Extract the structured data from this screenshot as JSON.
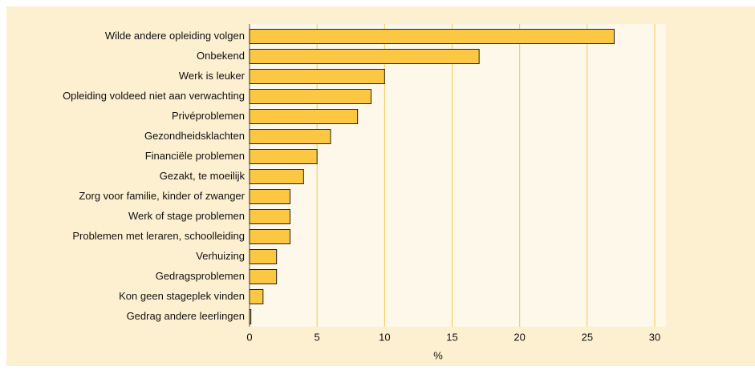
{
  "chart_data": {
    "type": "bar",
    "orientation": "horizontal",
    "categories": [
      "Wilde andere opleiding volgen",
      "Onbekend",
      "Werk is leuker",
      "Opleiding voldeed niet aan verwachting",
      "Privéproblemen",
      "Gezondheidsklachten",
      "Financiële problemen",
      "Gezakt, te moeilijk",
      "Zorg voor familie, kinder of zwanger",
      "Werk of stage problemen",
      "Problemen met leraren, schoolleiding",
      "Verhuizing",
      "Gedragsproblemen",
      "Kon geen stageplek vinden",
      "Gedrag andere leerlingen"
    ],
    "values": [
      27,
      17,
      10,
      9,
      8,
      6,
      5,
      4,
      3,
      3,
      3,
      2,
      2,
      1,
      0.1
    ],
    "color": "#fcc843",
    "xlabel": "%",
    "xlim": [
      0,
      30
    ],
    "xticks": [
      0,
      5,
      10,
      15,
      20,
      25,
      30
    ],
    "grid": true
  }
}
